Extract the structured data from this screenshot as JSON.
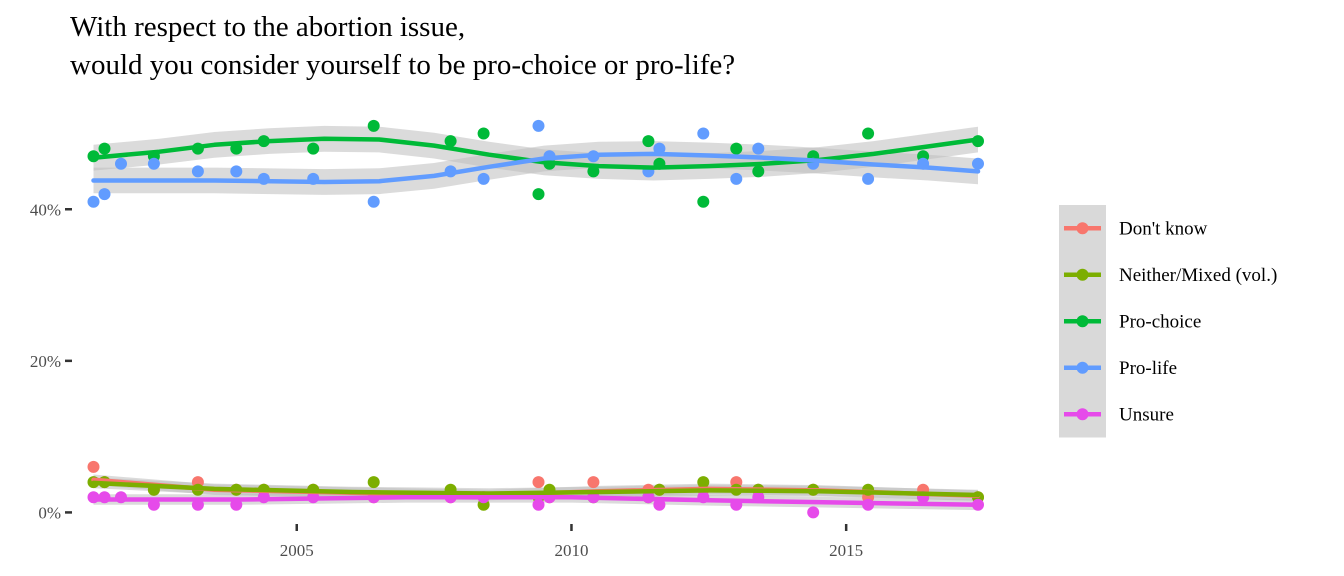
{
  "chart_data": {
    "type": "scatter",
    "title": "With respect to the abortion issue,",
    "subtitle": "would you consider yourself to be pro-choice or pro-life?",
    "xlabel": "",
    "ylabel": "",
    "xlim": [
      2001.0,
      2017.8
    ],
    "ylim": [
      -1,
      56
    ],
    "x_ticks": [
      2005,
      2010,
      2015
    ],
    "x_tick_labels": [
      "2005",
      "2010",
      "2015"
    ],
    "y_ticks": [
      0,
      20,
      40
    ],
    "y_tick_labels": [
      "0%",
      "20%",
      "40%"
    ],
    "grid": false,
    "legend_position": "right",
    "series": [
      {
        "name": "Don't know",
        "color": "#F8766D",
        "points": [
          [
            2001.3,
            6
          ],
          [
            2001.5,
            4
          ],
          [
            2002.4,
            3
          ],
          [
            2003.2,
            4
          ],
          [
            2003.9,
            3
          ],
          [
            2004.4,
            3
          ],
          [
            2005.3,
            3
          ],
          [
            2006.4,
            2
          ],
          [
            2007.8,
            2
          ],
          [
            2008.4,
            2
          ],
          [
            2009.4,
            4
          ],
          [
            2009.6,
            2
          ],
          [
            2010.4,
            4
          ],
          [
            2011.4,
            3
          ],
          [
            2011.6,
            3
          ],
          [
            2012.4,
            3
          ],
          [
            2013.0,
            4
          ],
          [
            2013.4,
            3
          ],
          [
            2014.4,
            3
          ],
          [
            2015.4,
            2
          ],
          [
            2016.4,
            3
          ],
          [
            2017.4,
            2
          ]
        ],
        "smooth": [
          [
            2001.3,
            4.3
          ],
          [
            2003.5,
            3.0
          ],
          [
            2006.0,
            2.6
          ],
          [
            2008.5,
            2.3
          ],
          [
            2010.5,
            2.8
          ],
          [
            2012.5,
            3.1
          ],
          [
            2014.5,
            2.9
          ],
          [
            2017.4,
            2.2
          ]
        ]
      },
      {
        "name": "Neither/Mixed (vol.)",
        "color": "#7CAE00",
        "points": [
          [
            2001.3,
            4
          ],
          [
            2001.5,
            4
          ],
          [
            2002.4,
            3
          ],
          [
            2003.2,
            3
          ],
          [
            2003.9,
            3
          ],
          [
            2004.4,
            3
          ],
          [
            2005.3,
            3
          ],
          [
            2006.4,
            4
          ],
          [
            2007.8,
            3
          ],
          [
            2008.4,
            1
          ],
          [
            2009.4,
            2
          ],
          [
            2009.6,
            3
          ],
          [
            2010.4,
            2
          ],
          [
            2011.4,
            2
          ],
          [
            2011.6,
            3
          ],
          [
            2012.4,
            4
          ],
          [
            2013.0,
            3
          ],
          [
            2013.4,
            3
          ],
          [
            2014.4,
            3
          ],
          [
            2015.4,
            3
          ],
          [
            2016.4,
            2
          ],
          [
            2017.4,
            2
          ]
        ],
        "smooth": [
          [
            2001.3,
            3.9
          ],
          [
            2003.5,
            3.1
          ],
          [
            2006.0,
            2.7
          ],
          [
            2008.5,
            2.5
          ],
          [
            2010.5,
            2.7
          ],
          [
            2012.5,
            2.9
          ],
          [
            2014.5,
            2.8
          ],
          [
            2017.4,
            2.3
          ]
        ]
      },
      {
        "name": "Pro-choice",
        "color": "#00BA38",
        "points": [
          [
            2001.3,
            47
          ],
          [
            2001.5,
            48
          ],
          [
            2002.4,
            47
          ],
          [
            2003.2,
            48
          ],
          [
            2003.9,
            48
          ],
          [
            2004.4,
            49
          ],
          [
            2005.3,
            48
          ],
          [
            2006.4,
            51
          ],
          [
            2007.8,
            49
          ],
          [
            2008.4,
            50
          ],
          [
            2009.4,
            42
          ],
          [
            2009.6,
            46
          ],
          [
            2010.4,
            45
          ],
          [
            2011.4,
            49
          ],
          [
            2011.6,
            46
          ],
          [
            2012.4,
            41
          ],
          [
            2013.0,
            48
          ],
          [
            2013.4,
            45
          ],
          [
            2014.4,
            47
          ],
          [
            2015.4,
            50
          ],
          [
            2016.4,
            47
          ],
          [
            2017.4,
            49
          ]
        ],
        "smooth": [
          [
            2001.3,
            46.8
          ],
          [
            2002.5,
            47.6
          ],
          [
            2003.5,
            48.5
          ],
          [
            2004.5,
            49.0
          ],
          [
            2005.5,
            49.3
          ],
          [
            2006.5,
            49.2
          ],
          [
            2007.5,
            48.4
          ],
          [
            2008.5,
            47.2
          ],
          [
            2009.5,
            46.2
          ],
          [
            2010.5,
            45.7
          ],
          [
            2011.5,
            45.5
          ],
          [
            2012.5,
            45.7
          ],
          [
            2013.5,
            46.0
          ],
          [
            2014.5,
            46.5
          ],
          [
            2015.5,
            47.3
          ],
          [
            2016.5,
            48.3
          ],
          [
            2017.4,
            49.2
          ]
        ]
      },
      {
        "name": "Pro-life",
        "color": "#619CFF",
        "points": [
          [
            2001.3,
            41
          ],
          [
            2001.5,
            42
          ],
          [
            2001.8,
            46
          ],
          [
            2002.4,
            46
          ],
          [
            2003.2,
            45
          ],
          [
            2003.9,
            45
          ],
          [
            2004.4,
            44
          ],
          [
            2005.3,
            44
          ],
          [
            2006.4,
            41
          ],
          [
            2007.8,
            45
          ],
          [
            2008.4,
            44
          ],
          [
            2009.4,
            51
          ],
          [
            2009.6,
            47
          ],
          [
            2010.4,
            47
          ],
          [
            2011.4,
            45
          ],
          [
            2011.6,
            48
          ],
          [
            2012.4,
            50
          ],
          [
            2013.0,
            44
          ],
          [
            2013.4,
            48
          ],
          [
            2014.4,
            46
          ],
          [
            2015.4,
            44
          ],
          [
            2016.4,
            46
          ],
          [
            2017.4,
            46
          ]
        ],
        "smooth": [
          [
            2001.3,
            43.8
          ],
          [
            2003.5,
            43.8
          ],
          [
            2005.5,
            43.6
          ],
          [
            2006.5,
            43.7
          ],
          [
            2007.5,
            44.4
          ],
          [
            2008.5,
            45.6
          ],
          [
            2009.5,
            46.7
          ],
          [
            2010.5,
            47.2
          ],
          [
            2011.5,
            47.3
          ],
          [
            2012.5,
            47.1
          ],
          [
            2013.5,
            46.8
          ],
          [
            2014.5,
            46.4
          ],
          [
            2015.5,
            45.9
          ],
          [
            2016.5,
            45.5
          ],
          [
            2017.4,
            45.0
          ]
        ]
      },
      {
        "name": "Unsure",
        "color": "#E64AEA",
        "points": [
          [
            2001.3,
            2
          ],
          [
            2001.5,
            2
          ],
          [
            2001.8,
            2
          ],
          [
            2002.4,
            1
          ],
          [
            2003.2,
            1
          ],
          [
            2003.9,
            1
          ],
          [
            2004.4,
            2
          ],
          [
            2005.3,
            2
          ],
          [
            2006.4,
            2
          ],
          [
            2007.8,
            2
          ],
          [
            2008.4,
            2
          ],
          [
            2009.4,
            1
          ],
          [
            2009.6,
            2
          ],
          [
            2010.4,
            2
          ],
          [
            2011.4,
            2
          ],
          [
            2011.6,
            1
          ],
          [
            2012.4,
            2
          ],
          [
            2013.0,
            1
          ],
          [
            2013.4,
            2
          ],
          [
            2014.4,
            0
          ],
          [
            2015.4,
            1
          ],
          [
            2016.4,
            2
          ],
          [
            2017.4,
            1
          ]
        ],
        "smooth": [
          [
            2001.3,
            1.7
          ],
          [
            2004.0,
            1.7
          ],
          [
            2007.0,
            2.0
          ],
          [
            2010.0,
            2.0
          ],
          [
            2012.5,
            1.6
          ],
          [
            2015.0,
            1.3
          ],
          [
            2017.4,
            1.0
          ]
        ]
      }
    ]
  },
  "colors": {
    "confidence_band": "#bdbdbd",
    "legend_background": "#d9d9d9",
    "tick_color": "#333333"
  }
}
